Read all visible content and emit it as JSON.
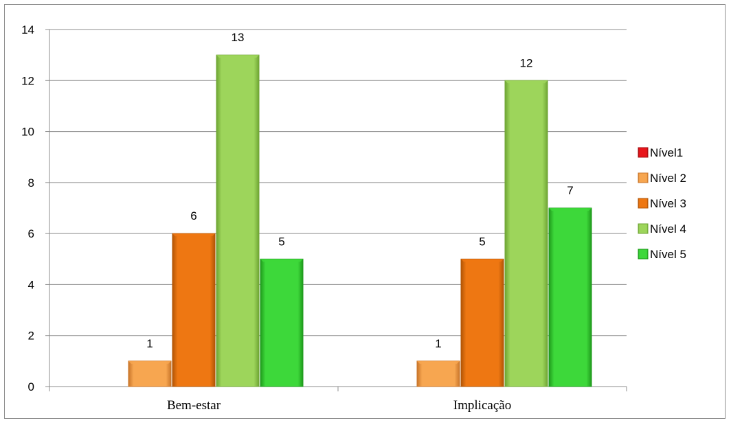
{
  "chart_data": {
    "type": "bar",
    "title": "",
    "xlabel": "",
    "ylabel": "",
    "categories": [
      "Bem-estar",
      "Implicação"
    ],
    "ylim": [
      0,
      14
    ],
    "yticks": [
      "0",
      "2",
      "4",
      "6",
      "8",
      "10",
      "12",
      "14"
    ],
    "grid": true,
    "legend_position": "right",
    "series": [
      {
        "name": "Nível1",
        "values": [
          0,
          0
        ],
        "color": "#e8151b",
        "dark": "#a40d10"
      },
      {
        "name": "Nível 2",
        "values": [
          1,
          1
        ],
        "color": "#f7a650",
        "dark": "#c9752a"
      },
      {
        "name": "Nível 3",
        "values": [
          6,
          5
        ],
        "color": "#ee7712",
        "dark": "#b25506"
      },
      {
        "name": "Nível 4",
        "values": [
          13,
          12
        ],
        "color": "#9dd55b",
        "dark": "#6fa534"
      },
      {
        "name": "Nível 5",
        "values": [
          5,
          7
        ],
        "color": "#3dd83a",
        "dark": "#1f9a1c"
      }
    ],
    "data_labels": [
      [
        "",
        "1",
        "6",
        "13",
        "5"
      ],
      [
        "",
        "1",
        "5",
        "12",
        "7"
      ]
    ]
  }
}
